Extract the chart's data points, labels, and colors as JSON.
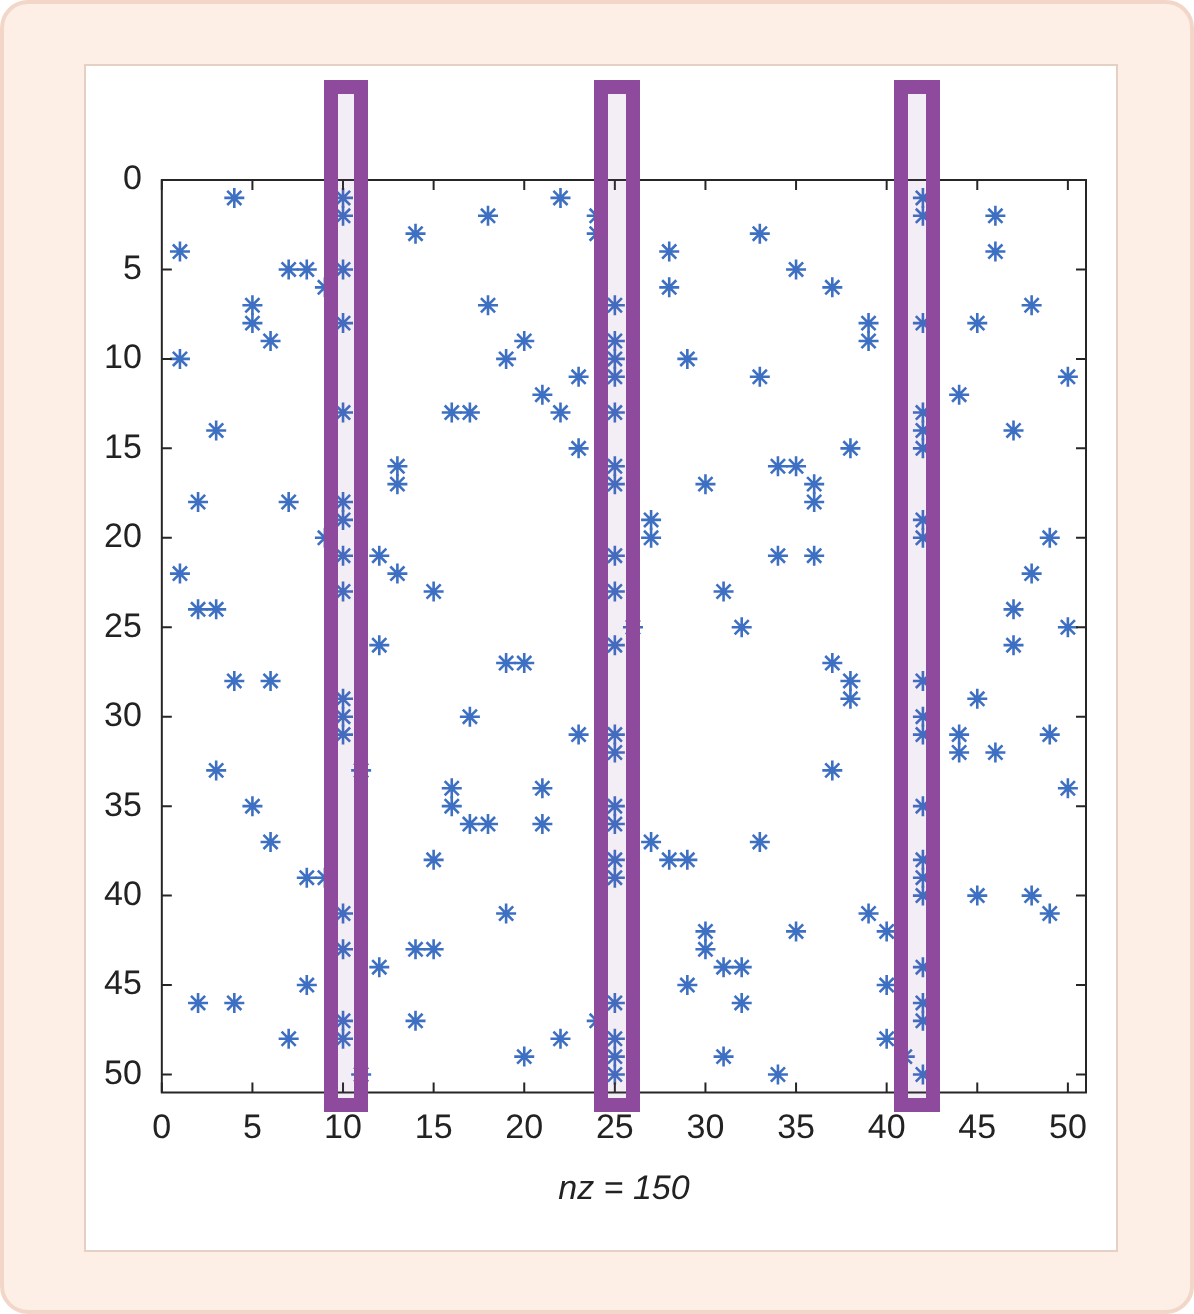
{
  "chart_data": {
    "type": "scatter",
    "xlabel": "nz = 150",
    "xlim": [
      0,
      51
    ],
    "ylim": [
      51,
      0
    ],
    "xticks": [
      0,
      5,
      10,
      15,
      20,
      25,
      30,
      35,
      40,
      45,
      50
    ],
    "yticks": [
      0,
      5,
      10,
      15,
      20,
      25,
      30,
      35,
      40,
      45,
      50
    ],
    "grid": false,
    "legend": false,
    "marker": "cross",
    "bands": [
      {
        "axis": "x",
        "from": 9,
        "to": 11.4,
        "color": "#8e4a9c"
      },
      {
        "axis": "x",
        "from": 23.9,
        "to": 26.4,
        "color": "#8e4a9c"
      },
      {
        "axis": "x",
        "from": 40.4,
        "to": 42.9,
        "color": "#8e4a9c"
      }
    ],
    "series": [
      {
        "color": "#3d6fc2",
        "x": [
          1,
          1,
          1,
          2,
          2,
          2,
          3,
          3,
          3,
          4,
          4,
          4,
          5,
          5,
          5,
          6,
          6,
          6,
          7,
          7,
          7,
          8,
          8,
          8,
          9,
          9,
          9,
          10,
          10,
          10,
          10,
          10,
          10,
          10,
          10,
          10,
          10,
          10,
          10,
          10,
          10,
          10,
          10,
          11,
          11,
          12,
          12,
          12,
          13,
          13,
          13,
          14,
          14,
          14,
          15,
          15,
          15,
          16,
          16,
          16,
          17,
          17,
          17,
          18,
          18,
          18,
          19,
          19,
          19,
          20,
          20,
          20,
          21,
          21,
          21,
          22,
          22,
          22,
          23,
          23,
          23,
          24,
          24,
          24,
          25,
          25,
          25,
          25,
          25,
          25,
          25,
          25,
          25,
          25,
          25,
          25,
          25,
          25,
          25,
          25,
          25,
          25,
          25,
          25,
          26,
          27,
          27,
          27,
          28,
          28,
          28,
          29,
          29,
          29,
          30,
          30,
          30,
          31,
          31,
          31,
          32,
          32,
          32,
          33,
          33,
          33,
          34,
          34,
          34,
          35,
          35,
          35,
          36,
          36,
          36,
          37,
          37,
          37,
          38,
          38,
          38,
          39,
          39,
          39,
          40,
          40,
          40,
          41,
          42,
          42,
          42,
          42,
          42,
          42,
          42,
          42,
          42,
          42,
          42,
          42,
          42,
          42,
          42,
          42,
          42,
          42,
          42,
          44,
          44,
          44,
          45,
          45,
          45,
          46,
          46,
          46,
          47,
          47,
          47,
          48,
          48,
          48,
          49,
          49,
          49,
          50,
          50,
          50
        ],
        "values": [
          4,
          10,
          22,
          18,
          24,
          46,
          14,
          24,
          33,
          1,
          28,
          46,
          7,
          8,
          35,
          9,
          28,
          37,
          5,
          18,
          48,
          5,
          39,
          45,
          6,
          20,
          39,
          1,
          2,
          5,
          8,
          13,
          18,
          19,
          21,
          23,
          29,
          30,
          31,
          41,
          43,
          47,
          48,
          33,
          50,
          21,
          26,
          44,
          16,
          17,
          22,
          3,
          43,
          47,
          23,
          38,
          43,
          13,
          34,
          35,
          13,
          30,
          36,
          2,
          7,
          36,
          10,
          27,
          41,
          9,
          27,
          49,
          12,
          34,
          36,
          1,
          13,
          48,
          11,
          15,
          31,
          2,
          3,
          47,
          7,
          9,
          10,
          11,
          13,
          16,
          17,
          21,
          23,
          26,
          31,
          32,
          35,
          36,
          38,
          39,
          46,
          48,
          49,
          50,
          25,
          19,
          20,
          37,
          4,
          6,
          38,
          10,
          38,
          45,
          17,
          42,
          43,
          23,
          44,
          49,
          25,
          44,
          46,
          3,
          11,
          37,
          16,
          21,
          50,
          5,
          16,
          42,
          17,
          18,
          21,
          6,
          27,
          33,
          15,
          28,
          29,
          8,
          9,
          41,
          42,
          45,
          48,
          49,
          1,
          2,
          8,
          13,
          14,
          15,
          19,
          20,
          28,
          30,
          31,
          35,
          38,
          39,
          40,
          44,
          46,
          47,
          50,
          12,
          31,
          32,
          8,
          29,
          40,
          2,
          4,
          32,
          14,
          24,
          26,
          7,
          22,
          40,
          20,
          31,
          41,
          11,
          25,
          34
        ]
      }
    ]
  }
}
